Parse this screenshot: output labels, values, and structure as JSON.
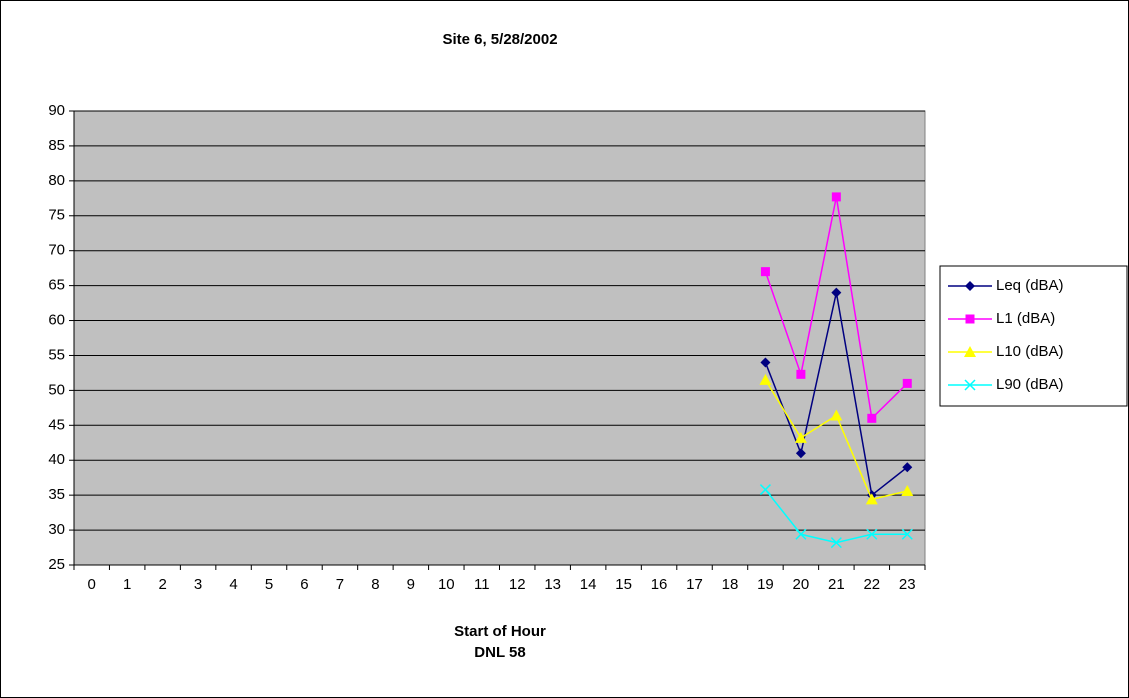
{
  "chart_data": {
    "type": "line",
    "title": "Site 6, 5/28/2002",
    "xlabel": "Start of Hour",
    "annotation": "DNL 58",
    "categories": [
      "0",
      "1",
      "2",
      "3",
      "4",
      "5",
      "6",
      "7",
      "8",
      "9",
      "10",
      "11",
      "12",
      "13",
      "14",
      "15",
      "16",
      "17",
      "18",
      "19",
      "20",
      "21",
      "22",
      "23"
    ],
    "series": [
      {
        "name": "Leq (dBA)",
        "color": "#000080",
        "marker": "diamond",
        "values": [
          null,
          null,
          null,
          null,
          null,
          null,
          null,
          null,
          null,
          null,
          null,
          null,
          null,
          null,
          null,
          null,
          null,
          null,
          null,
          54,
          41,
          64,
          35,
          39
        ]
      },
      {
        "name": "L1 (dBA)",
        "color": "#ff00ff",
        "marker": "square",
        "values": [
          null,
          null,
          null,
          null,
          null,
          null,
          null,
          null,
          null,
          null,
          null,
          null,
          null,
          null,
          null,
          null,
          null,
          null,
          null,
          67,
          52.3,
          77.7,
          46,
          51
        ]
      },
      {
        "name": "L10 (dBA)",
        "color": "#ffff00",
        "marker": "triangle",
        "values": [
          null,
          null,
          null,
          null,
          null,
          null,
          null,
          null,
          null,
          null,
          null,
          null,
          null,
          null,
          null,
          null,
          null,
          null,
          null,
          51.5,
          43.2,
          46.4,
          34.4,
          35.6
        ]
      },
      {
        "name": "L90 (dBA)",
        "color": "#00ffff",
        "marker": "x",
        "values": [
          null,
          null,
          null,
          null,
          null,
          null,
          null,
          null,
          null,
          null,
          null,
          null,
          null,
          null,
          null,
          null,
          null,
          null,
          null,
          35.8,
          29.4,
          28.2,
          29.4,
          29.4
        ]
      }
    ],
    "ylim": [
      25,
      90
    ],
    "yticks": [
      25,
      30,
      35,
      40,
      45,
      50,
      55,
      60,
      65,
      70,
      75,
      80,
      85,
      90
    ],
    "grid": true,
    "plot_background": "#c0c0c0",
    "legend": "right"
  }
}
